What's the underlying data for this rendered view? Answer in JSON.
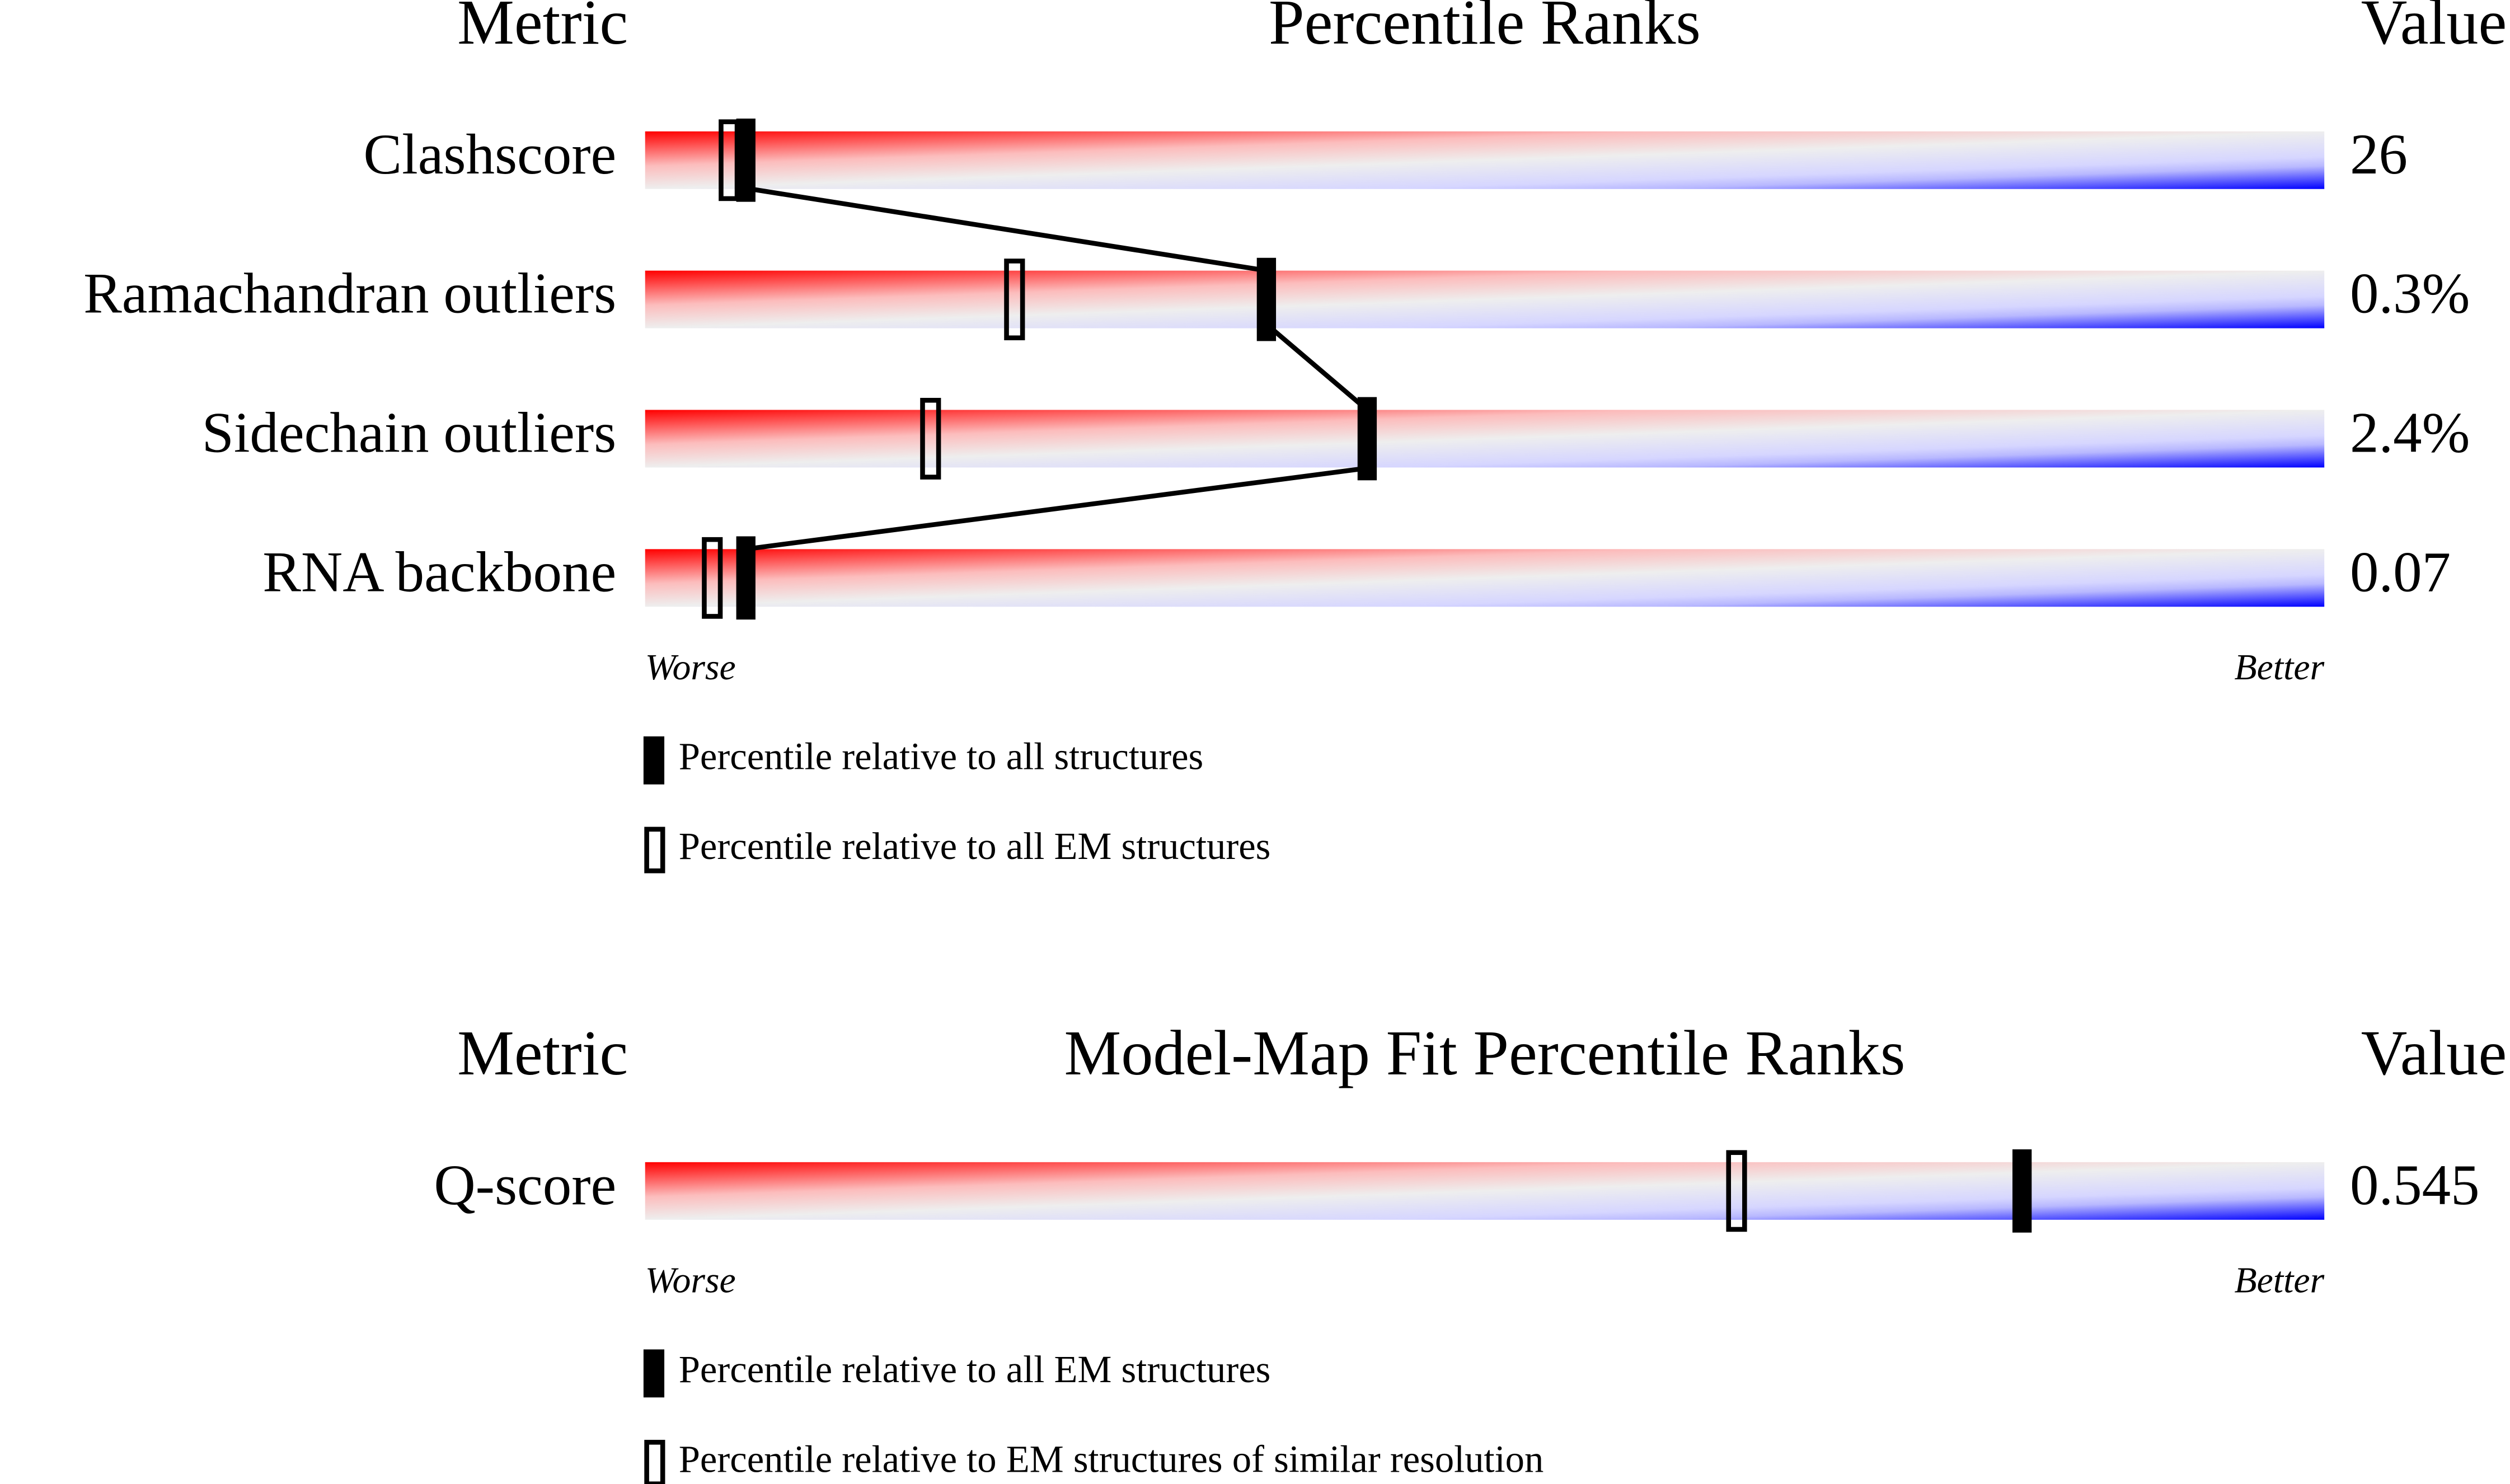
{
  "chart_data": [
    {
      "type": "percentile",
      "headers": {
        "metric": "Metric",
        "title": "Percentile Ranks",
        "value": "Value"
      },
      "categories": [
        "Clashscore",
        "Ramachandran outliers",
        "Sidechain outliers",
        "RNA backbone"
      ],
      "metric_values": [
        "26",
        "0.3%",
        "2.4%",
        "0.07"
      ],
      "series": [
        {
          "name": "Percentile relative to all structures",
          "style": "filled",
          "color": "#000000",
          "values": [
            6,
            37,
            43,
            6
          ]
        },
        {
          "name": "Percentile relative to all EM structures",
          "style": "open",
          "color": "#000000",
          "values": [
            5,
            22,
            17,
            4
          ]
        }
      ],
      "connect_series": 0,
      "xlim": [
        0,
        100
      ],
      "low_label": "Worse",
      "high_label": "Better"
    },
    {
      "type": "percentile",
      "headers": {
        "metric": "Metric",
        "title": "Model-Map Fit Percentile Ranks",
        "value": "Value"
      },
      "categories": [
        "Q-score"
      ],
      "metric_values": [
        "0.545"
      ],
      "series": [
        {
          "name": "Percentile relative to all EM structures",
          "style": "filled",
          "color": "#000000",
          "values": [
            82
          ]
        },
        {
          "name": "Percentile relative to EM structures of similar resolution",
          "style": "open",
          "color": "#000000",
          "values": [
            65
          ]
        }
      ],
      "connect_series": null,
      "xlim": [
        0,
        100
      ],
      "low_label": "Worse",
      "high_label": "Better"
    }
  ]
}
